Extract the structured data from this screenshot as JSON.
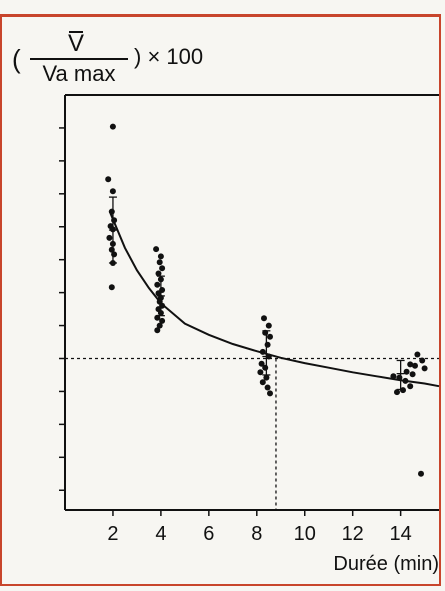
{
  "ylabel": {
    "numerator": "V",
    "denominator": "Va max",
    "open_paren": "(",
    "suffix": ") × 100"
  },
  "chart_data": {
    "type": "scatter",
    "title": "",
    "xlabel": "Durée (min)",
    "ylabel": "(V / Va max) × 100",
    "xlim": [
      0,
      15.6
    ],
    "ylim": [
      57,
      120
    ],
    "x_tick_labels": [
      "2",
      "4",
      "6",
      "8",
      "10",
      "12",
      "14"
    ],
    "x_ticks": [
      2,
      4,
      6,
      8,
      10,
      12,
      14
    ],
    "y_ticks": [
      60,
      65,
      70,
      75,
      80,
      85,
      90,
      95,
      100,
      105,
      110,
      115
    ],
    "y_tick_labels_shown": false,
    "grid": false,
    "reference_lines": {
      "horizontal_y": 80,
      "vertical_x": 8.8
    },
    "curve": {
      "name": "",
      "points": [
        [
          1.9,
          102
        ],
        [
          2.5,
          96.8
        ],
        [
          3,
          93.4
        ],
        [
          3.5,
          90.7
        ],
        [
          4,
          88.4
        ],
        [
          5,
          85.3
        ],
        [
          6,
          83.6
        ],
        [
          7,
          82.2
        ],
        [
          8,
          81.1
        ],
        [
          9,
          80.1
        ],
        [
          10,
          79.3
        ],
        [
          11,
          78.6
        ],
        [
          12,
          77.9
        ],
        [
          13,
          77.3
        ],
        [
          14,
          76.7
        ],
        [
          15,
          76.2
        ],
        [
          15.6,
          75.8
        ]
      ]
    },
    "error_bars": [
      {
        "x": 2,
        "mean": 99.5,
        "low": 94.5,
        "high": 104.5
      },
      {
        "x": 4,
        "mean": 89.5,
        "low": 86.5,
        "high": 92.5
      },
      {
        "x": 8.4,
        "mean": 80.3,
        "low": 77.5,
        "high": 84.2
      },
      {
        "x": 14,
        "mean": 77.7,
        "low": 75.3,
        "high": 79.7
      }
    ],
    "points": [
      [
        2,
        115.2
      ],
      [
        1.8,
        107.2
      ],
      [
        2.0,
        105.4
      ],
      [
        1.95,
        102.3
      ],
      [
        2.05,
        101.0
      ],
      [
        1.9,
        100.1
      ],
      [
        2.0,
        99.6
      ],
      [
        1.85,
        98.3
      ],
      [
        2.0,
        97.4
      ],
      [
        1.95,
        96.5
      ],
      [
        2.05,
        95.8
      ],
      [
        2.0,
        94.5
      ],
      [
        1.95,
        90.8
      ],
      [
        3.8,
        96.6
      ],
      [
        4.0,
        95.5
      ],
      [
        3.95,
        94.6
      ],
      [
        4.05,
        93.7
      ],
      [
        3.9,
        92.9
      ],
      [
        4.0,
        92.0
      ],
      [
        3.85,
        91.2
      ],
      [
        4.05,
        90.4
      ],
      [
        3.9,
        89.9
      ],
      [
        4.0,
        89.2
      ],
      [
        3.95,
        88.6
      ],
      [
        4.05,
        88.0
      ],
      [
        3.9,
        87.5
      ],
      [
        4.0,
        86.9
      ],
      [
        3.85,
        86.2
      ],
      [
        4.05,
        85.7
      ],
      [
        3.95,
        85.0
      ],
      [
        3.85,
        84.3
      ],
      [
        8.3,
        86.1
      ],
      [
        8.5,
        85.0
      ],
      [
        8.35,
        83.9
      ],
      [
        8.55,
        83.3
      ],
      [
        8.45,
        82.1
      ],
      [
        8.25,
        81.0
      ],
      [
        8.5,
        80.3
      ],
      [
        8.2,
        79.2
      ],
      [
        8.35,
        78.6
      ],
      [
        8.15,
        77.9
      ],
      [
        8.4,
        77.1
      ],
      [
        8.25,
        76.4
      ],
      [
        8.45,
        75.6
      ],
      [
        8.55,
        74.7
      ],
      [
        14.7,
        80.6
      ],
      [
        14.9,
        79.7
      ],
      [
        14.4,
        79.1
      ],
      [
        14.6,
        78.9
      ],
      [
        15.0,
        78.5
      ],
      [
        14.25,
        78.0
      ],
      [
        14.5,
        77.6
      ],
      [
        13.7,
        77.3
      ],
      [
        13.95,
        77.1
      ],
      [
        14.2,
        76.6
      ],
      [
        14.4,
        75.8
      ],
      [
        14.1,
        75.2
      ],
      [
        13.85,
        74.9
      ],
      [
        14.85,
        62.5
      ]
    ]
  }
}
